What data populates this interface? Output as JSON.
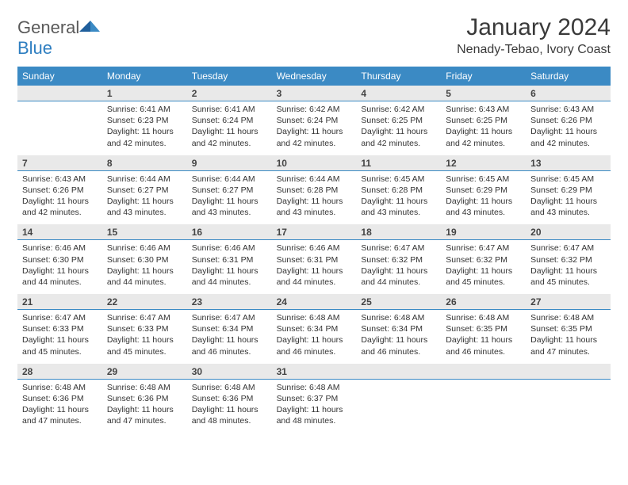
{
  "brand": {
    "name1": "General",
    "name2": "Blue"
  },
  "header": {
    "title": "January 2024",
    "location": "Nenady-Tebao, Ivory Coast"
  },
  "colors": {
    "header_bar": "#3b8ac4",
    "numrow_bg": "#e9e9e9",
    "numrow_border": "#3b8ac4",
    "text": "#333333",
    "logo_gray": "#5a5a5a",
    "logo_blue": "#2f7fc1",
    "background": "#ffffff"
  },
  "typography": {
    "title_fontsize": 30,
    "location_fontsize": 16,
    "dayname_fontsize": 12,
    "daynum_fontsize": 12,
    "cell_fontsize": 10.5
  },
  "daynames": [
    "Sunday",
    "Monday",
    "Tuesday",
    "Wednesday",
    "Thursday",
    "Friday",
    "Saturday"
  ],
  "labels": {
    "sunrise": "Sunrise:",
    "sunset": "Sunset:",
    "daylight": "Daylight:"
  },
  "weeks": [
    [
      null,
      {
        "n": "1",
        "sr": "6:41 AM",
        "ss": "6:23 PM",
        "dl": "11 hours and 42 minutes."
      },
      {
        "n": "2",
        "sr": "6:41 AM",
        "ss": "6:24 PM",
        "dl": "11 hours and 42 minutes."
      },
      {
        "n": "3",
        "sr": "6:42 AM",
        "ss": "6:24 PM",
        "dl": "11 hours and 42 minutes."
      },
      {
        "n": "4",
        "sr": "6:42 AM",
        "ss": "6:25 PM",
        "dl": "11 hours and 42 minutes."
      },
      {
        "n": "5",
        "sr": "6:43 AM",
        "ss": "6:25 PM",
        "dl": "11 hours and 42 minutes."
      },
      {
        "n": "6",
        "sr": "6:43 AM",
        "ss": "6:26 PM",
        "dl": "11 hours and 42 minutes."
      }
    ],
    [
      {
        "n": "7",
        "sr": "6:43 AM",
        "ss": "6:26 PM",
        "dl": "11 hours and 42 minutes."
      },
      {
        "n": "8",
        "sr": "6:44 AM",
        "ss": "6:27 PM",
        "dl": "11 hours and 43 minutes."
      },
      {
        "n": "9",
        "sr": "6:44 AM",
        "ss": "6:27 PM",
        "dl": "11 hours and 43 minutes."
      },
      {
        "n": "10",
        "sr": "6:44 AM",
        "ss": "6:28 PM",
        "dl": "11 hours and 43 minutes."
      },
      {
        "n": "11",
        "sr": "6:45 AM",
        "ss": "6:28 PM",
        "dl": "11 hours and 43 minutes."
      },
      {
        "n": "12",
        "sr": "6:45 AM",
        "ss": "6:29 PM",
        "dl": "11 hours and 43 minutes."
      },
      {
        "n": "13",
        "sr": "6:45 AM",
        "ss": "6:29 PM",
        "dl": "11 hours and 43 minutes."
      }
    ],
    [
      {
        "n": "14",
        "sr": "6:46 AM",
        "ss": "6:30 PM",
        "dl": "11 hours and 44 minutes."
      },
      {
        "n": "15",
        "sr": "6:46 AM",
        "ss": "6:30 PM",
        "dl": "11 hours and 44 minutes."
      },
      {
        "n": "16",
        "sr": "6:46 AM",
        "ss": "6:31 PM",
        "dl": "11 hours and 44 minutes."
      },
      {
        "n": "17",
        "sr": "6:46 AM",
        "ss": "6:31 PM",
        "dl": "11 hours and 44 minutes."
      },
      {
        "n": "18",
        "sr": "6:47 AM",
        "ss": "6:32 PM",
        "dl": "11 hours and 44 minutes."
      },
      {
        "n": "19",
        "sr": "6:47 AM",
        "ss": "6:32 PM",
        "dl": "11 hours and 45 minutes."
      },
      {
        "n": "20",
        "sr": "6:47 AM",
        "ss": "6:32 PM",
        "dl": "11 hours and 45 minutes."
      }
    ],
    [
      {
        "n": "21",
        "sr": "6:47 AM",
        "ss": "6:33 PM",
        "dl": "11 hours and 45 minutes."
      },
      {
        "n": "22",
        "sr": "6:47 AM",
        "ss": "6:33 PM",
        "dl": "11 hours and 45 minutes."
      },
      {
        "n": "23",
        "sr": "6:47 AM",
        "ss": "6:34 PM",
        "dl": "11 hours and 46 minutes."
      },
      {
        "n": "24",
        "sr": "6:48 AM",
        "ss": "6:34 PM",
        "dl": "11 hours and 46 minutes."
      },
      {
        "n": "25",
        "sr": "6:48 AM",
        "ss": "6:34 PM",
        "dl": "11 hours and 46 minutes."
      },
      {
        "n": "26",
        "sr": "6:48 AM",
        "ss": "6:35 PM",
        "dl": "11 hours and 46 minutes."
      },
      {
        "n": "27",
        "sr": "6:48 AM",
        "ss": "6:35 PM",
        "dl": "11 hours and 47 minutes."
      }
    ],
    [
      {
        "n": "28",
        "sr": "6:48 AM",
        "ss": "6:36 PM",
        "dl": "11 hours and 47 minutes."
      },
      {
        "n": "29",
        "sr": "6:48 AM",
        "ss": "6:36 PM",
        "dl": "11 hours and 47 minutes."
      },
      {
        "n": "30",
        "sr": "6:48 AM",
        "ss": "6:36 PM",
        "dl": "11 hours and 48 minutes."
      },
      {
        "n": "31",
        "sr": "6:48 AM",
        "ss": "6:37 PM",
        "dl": "11 hours and 48 minutes."
      },
      null,
      null,
      null
    ]
  ]
}
